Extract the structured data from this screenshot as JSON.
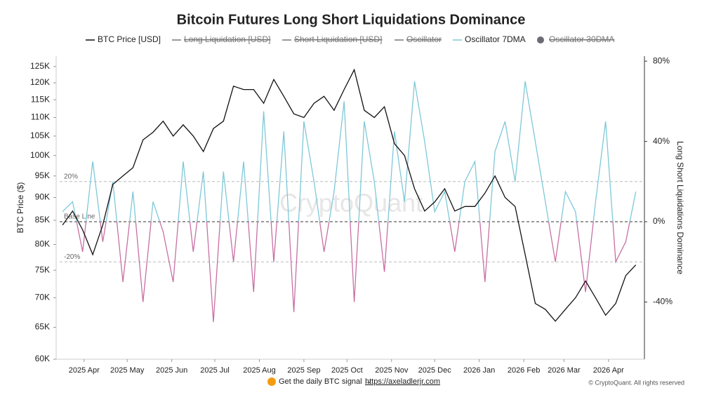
{
  "chart_data": {
    "type": "line",
    "title": "Bitcoin Futures Long Short Liquidations Dominance",
    "ylabel": "BTC Price ($)",
    "y2label": "Long Short Liquidations Dominance",
    "watermark": "CryptoQuant",
    "footer": {
      "text": "Get the daily BTC signal →",
      "link": "https://axeladlerjr.com",
      "copyright": "© CryptoQuant. All rights reserved"
    },
    "x": [
      "2025-03-17",
      "2025-03-24",
      "2025-03-31",
      "2025-04-07",
      "2025-04-14",
      "2025-04-21",
      "2025-04-28",
      "2025-05-05",
      "2025-05-12",
      "2025-05-19",
      "2025-05-26",
      "2025-06-02",
      "2025-06-09",
      "2025-06-16",
      "2025-06-23",
      "2025-06-30",
      "2025-07-07",
      "2025-07-14",
      "2025-07-21",
      "2025-07-28",
      "2025-08-04",
      "2025-08-11",
      "2025-08-18",
      "2025-08-25",
      "2025-09-01",
      "2025-09-08",
      "2025-09-15",
      "2025-09-22",
      "2025-09-29",
      "2025-10-06",
      "2025-10-13",
      "2025-10-20",
      "2025-10-27",
      "2025-11-03",
      "2025-11-10",
      "2025-11-17",
      "2025-11-24",
      "2025-12-01",
      "2025-12-08",
      "2025-12-15",
      "2025-12-22",
      "2025-12-29",
      "2026-01-05",
      "2026-01-12",
      "2026-01-19",
      "2026-01-26",
      "2026-02-02",
      "2026-02-09",
      "2026-02-16",
      "2026-02-23",
      "2026-03-02",
      "2026-03-09",
      "2026-03-16",
      "2026-03-23",
      "2026-03-30",
      "2026-04-06",
      "2026-04-13",
      "2026-04-20"
    ],
    "xlim": [
      "2025-03-15",
      "2026-04-26"
    ],
    "xticks": [
      {
        "value": "2025-04-01",
        "label": "2025 Apr"
      },
      {
        "value": "2025-05-01",
        "label": "2025 May"
      },
      {
        "value": "2025-06-01",
        "label": "2025 Jun"
      },
      {
        "value": "2025-07-01",
        "label": "2025 Jul"
      },
      {
        "value": "2025-08-01",
        "label": "2025 Aug"
      },
      {
        "value": "2025-09-01",
        "label": "2025 Sep"
      },
      {
        "value": "2025-10-01",
        "label": "2025 Oct"
      },
      {
        "value": "2025-11-01",
        "label": "2025 Nov"
      },
      {
        "value": "2025-12-01",
        "label": "2025 Dec"
      },
      {
        "value": "2026-01-01",
        "label": "2026 Jan"
      },
      {
        "value": "2026-02-01",
        "label": "2026 Feb"
      },
      {
        "value": "2026-03-01",
        "label": "2026 Mar"
      },
      {
        "value": "2026-04-01",
        "label": "2026 Apr"
      }
    ],
    "ylog": true,
    "ylim": [
      60000,
      128300
    ],
    "yticks": [
      {
        "value": 60000,
        "label": "60K"
      },
      {
        "value": 65000,
        "label": "65K"
      },
      {
        "value": 70000,
        "label": "70K"
      },
      {
        "value": 75000,
        "label": "75K"
      },
      {
        "value": 80000,
        "label": "80K"
      },
      {
        "value": 85000,
        "label": "85K"
      },
      {
        "value": 90000,
        "label": "90K"
      },
      {
        "value": 95000,
        "label": "95K"
      },
      {
        "value": 100000,
        "label": "100K"
      },
      {
        "value": 105000,
        "label": "105K"
      },
      {
        "value": 110000,
        "label": "110K"
      },
      {
        "value": 115000,
        "label": "115K"
      },
      {
        "value": 120000,
        "label": "120K"
      },
      {
        "value": 125000,
        "label": "125K"
      }
    ],
    "y2lim": [
      -68.5,
      82.5
    ],
    "y2ticks": [
      {
        "value": -40,
        "label": "-40%"
      },
      {
        "value": 0,
        "label": "0%"
      },
      {
        "value": 40,
        "label": "40%"
      },
      {
        "value": 80,
        "label": "80%"
      }
    ],
    "ref_lines": [
      {
        "value": 20,
        "label": "20%"
      },
      {
        "value": 0,
        "label": "Base Line"
      },
      {
        "value": -20,
        "label": "-20%"
      }
    ],
    "series": [
      {
        "name": "BTC Price [USD]",
        "color": "#111111",
        "values": [
          84000,
          87000,
          83000,
          78000,
          84000,
          93000,
          95000,
          97000,
          104000,
          106000,
          109000,
          105000,
          108000,
          105000,
          101000,
          107000,
          109000,
          119000,
          118000,
          118000,
          114000,
          121000,
          116000,
          111000,
          110000,
          114000,
          116000,
          112000,
          118000,
          124000,
          112000,
          110000,
          113000,
          103000,
          100000,
          92000,
          87000,
          89000,
          92000,
          87000,
          88000,
          88000,
          91000,
          95000,
          90000,
          88000,
          78000,
          69000,
          68000,
          66000,
          68000,
          70000,
          73000,
          70000,
          67000,
          69000,
          74000,
          76000
        ]
      },
      {
        "name": "Oscillator 7DMA",
        "color": "#7ec8d8",
        "negative_color": "#c86fa3",
        "axis": "y2",
        "values": [
          5,
          10,
          -15,
          30,
          -10,
          20,
          -30,
          15,
          -40,
          10,
          -5,
          -30,
          30,
          -15,
          25,
          -50,
          25,
          -20,
          30,
          -35,
          55,
          -20,
          45,
          -45,
          50,
          20,
          -15,
          15,
          60,
          -40,
          50,
          20,
          -25,
          45,
          10,
          70,
          40,
          5,
          15,
          -15,
          20,
          30,
          -30,
          35,
          50,
          20,
          70,
          40,
          10,
          -20,
          15,
          5,
          -35,
          10,
          50,
          -20,
          -10,
          15
        ]
      }
    ],
    "hidden_series": [
      {
        "name": "Long Liquidation [USD]",
        "color": "#777777"
      },
      {
        "name": "Short Liquidation [USD]",
        "color": "#777777"
      },
      {
        "name": "Oscillator",
        "color": "#777777"
      },
      {
        "name": "Oscillator 30DMA",
        "color": "#6b6b72"
      }
    ]
  }
}
